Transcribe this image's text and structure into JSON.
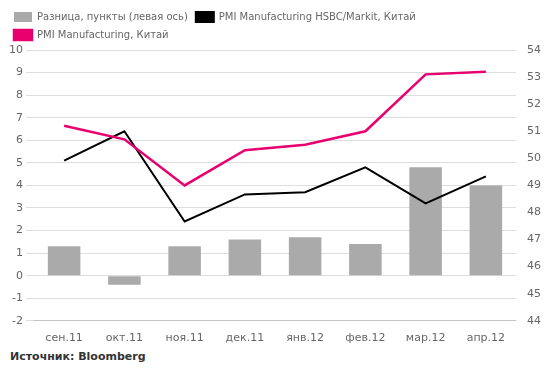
{
  "chart_data": {
    "type": "bar",
    "categories": [
      "сен.11",
      "окт.11",
      "ноя.11",
      "дек.11",
      "янв.12",
      "фев.12",
      "мар.12",
      "апр.12"
    ],
    "series": [
      {
        "name": "Разница, пункты (левая ось)",
        "type": "bar",
        "color": "#aaaaaa",
        "values": [
          1.3,
          -0.4,
          1.3,
          1.6,
          1.7,
          1.4,
          4.8,
          4.0
        ]
      },
      {
        "name": "PMI Manufacturing HSBC/Markit, Китай",
        "type": "line",
        "color": "#000000",
        "values": [
          5.1,
          6.4,
          2.4,
          3.6,
          3.7,
          4.8,
          3.2,
          4.4
        ]
      },
      {
        "name": "PMI Manufacturing, Китай",
        "type": "line",
        "color": "#e8006f",
        "axis": "y2",
        "values": [
          51.2,
          50.7,
          49.0,
          50.3,
          50.5,
          51.0,
          53.1,
          53.2
        ]
      }
    ],
    "ylim": [
      -2,
      10
    ],
    "yticks": [
      -2,
      -1,
      0,
      1,
      2,
      3,
      4,
      5,
      6,
      7,
      8,
      9,
      10
    ],
    "y2lim": [
      44,
      54
    ],
    "y2ticks": [
      44,
      45,
      46,
      47,
      48,
      49,
      50,
      51,
      52,
      53,
      54
    ],
    "grid": true,
    "legend": "upper left",
    "annotations": [
      "Источник: Bloomberg"
    ]
  }
}
